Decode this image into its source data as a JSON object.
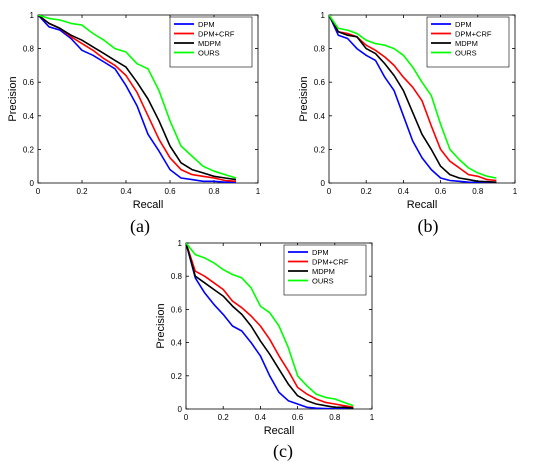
{
  "figure": {
    "panels": [
      {
        "caption": "(a)"
      },
      {
        "caption": "(b)"
      },
      {
        "caption": "(c)"
      }
    ]
  },
  "chart_data": [
    {
      "type": "line",
      "title": "",
      "xlabel": "Recall",
      "ylabel": "Precision",
      "xlim": [
        0,
        1
      ],
      "ylim": [
        0,
        1
      ],
      "xticks": [
        "0",
        "0.2",
        "0.4",
        "0.6",
        "0.8",
        "1"
      ],
      "yticks": [
        "0",
        "0.2",
        "0.4",
        "0.6",
        "0.8",
        "1"
      ],
      "grid": false,
      "legend_position": "top-right",
      "series": [
        {
          "name": "DPM",
          "color": "#0000ff",
          "x": [
            0,
            0.05,
            0.1,
            0.15,
            0.2,
            0.25,
            0.3,
            0.35,
            0.4,
            0.45,
            0.5,
            0.55,
            0.6,
            0.65,
            0.7,
            0.75,
            0.8,
            0.85,
            0.9
          ],
          "y": [
            1,
            0.93,
            0.91,
            0.86,
            0.79,
            0.76,
            0.72,
            0.68,
            0.58,
            0.46,
            0.29,
            0.19,
            0.08,
            0.03,
            0.02,
            0.01,
            0.01,
            0.005,
            0.005
          ]
        },
        {
          "name": "DPM+CRF",
          "color": "#ff0000",
          "x": [
            0,
            0.05,
            0.1,
            0.15,
            0.2,
            0.25,
            0.3,
            0.35,
            0.4,
            0.45,
            0.5,
            0.55,
            0.6,
            0.65,
            0.7,
            0.75,
            0.8,
            0.85,
            0.9
          ],
          "y": [
            1,
            0.95,
            0.92,
            0.87,
            0.83,
            0.79,
            0.74,
            0.7,
            0.64,
            0.54,
            0.4,
            0.26,
            0.15,
            0.08,
            0.05,
            0.04,
            0.03,
            0.015,
            0.01
          ]
        },
        {
          "name": "MDPM",
          "color": "#000000",
          "x": [
            0,
            0.05,
            0.1,
            0.15,
            0.2,
            0.25,
            0.3,
            0.35,
            0.4,
            0.45,
            0.5,
            0.55,
            0.6,
            0.65,
            0.7,
            0.75,
            0.8,
            0.85,
            0.9
          ],
          "y": [
            1,
            0.95,
            0.92,
            0.88,
            0.85,
            0.81,
            0.77,
            0.73,
            0.69,
            0.6,
            0.5,
            0.37,
            0.22,
            0.12,
            0.08,
            0.06,
            0.04,
            0.03,
            0.02
          ]
        },
        {
          "name": "OURS",
          "color": "#00ff00",
          "x": [
            0,
            0.05,
            0.1,
            0.15,
            0.2,
            0.25,
            0.3,
            0.35,
            0.4,
            0.45,
            0.5,
            0.55,
            0.6,
            0.65,
            0.7,
            0.75,
            0.8,
            0.85,
            0.9
          ],
          "y": [
            1,
            0.98,
            0.97,
            0.95,
            0.94,
            0.89,
            0.85,
            0.8,
            0.78,
            0.71,
            0.68,
            0.55,
            0.37,
            0.22,
            0.16,
            0.1,
            0.07,
            0.05,
            0.03
          ]
        }
      ]
    },
    {
      "type": "line",
      "title": "",
      "xlabel": "Recall",
      "ylabel": "Precision",
      "xlim": [
        0,
        1
      ],
      "ylim": [
        0,
        1
      ],
      "xticks": [
        "0",
        "0.2",
        "0.4",
        "0.6",
        "0.8",
        "1"
      ],
      "yticks": [
        "0",
        "0.2",
        "0.4",
        "0.6",
        "0.8",
        "1"
      ],
      "grid": false,
      "legend_position": "top-right",
      "series": [
        {
          "name": "DPM",
          "color": "#0000ff",
          "x": [
            0,
            0.05,
            0.1,
            0.15,
            0.2,
            0.25,
            0.3,
            0.35,
            0.4,
            0.45,
            0.5,
            0.55,
            0.6,
            0.65,
            0.7,
            0.75,
            0.8,
            0.85,
            0.9
          ],
          "y": [
            1,
            0.88,
            0.86,
            0.8,
            0.76,
            0.73,
            0.63,
            0.55,
            0.4,
            0.25,
            0.15,
            0.08,
            0.03,
            0.015,
            0.01,
            0.005,
            0.003,
            0.002,
            0.001
          ]
        },
        {
          "name": "DPM+CRF",
          "color": "#ff0000",
          "x": [
            0,
            0.05,
            0.1,
            0.15,
            0.2,
            0.25,
            0.3,
            0.35,
            0.4,
            0.45,
            0.5,
            0.55,
            0.6,
            0.65,
            0.7,
            0.75,
            0.8,
            0.85,
            0.9
          ],
          "y": [
            1,
            0.9,
            0.89,
            0.87,
            0.82,
            0.79,
            0.75,
            0.7,
            0.63,
            0.57,
            0.49,
            0.34,
            0.2,
            0.13,
            0.09,
            0.05,
            0.04,
            0.02,
            0.015
          ]
        },
        {
          "name": "MDPM",
          "color": "#000000",
          "x": [
            0,
            0.05,
            0.1,
            0.15,
            0.2,
            0.25,
            0.3,
            0.35,
            0.4,
            0.45,
            0.5,
            0.55,
            0.6,
            0.65,
            0.7,
            0.75,
            0.8,
            0.85,
            0.9
          ],
          "y": [
            1,
            0.9,
            0.88,
            0.87,
            0.8,
            0.77,
            0.71,
            0.64,
            0.55,
            0.42,
            0.29,
            0.2,
            0.1,
            0.05,
            0.03,
            0.02,
            0.01,
            0.008,
            0.005
          ]
        },
        {
          "name": "OURS",
          "color": "#00ff00",
          "x": [
            0,
            0.05,
            0.1,
            0.15,
            0.2,
            0.25,
            0.3,
            0.35,
            0.4,
            0.45,
            0.5,
            0.55,
            0.6,
            0.65,
            0.7,
            0.75,
            0.8,
            0.85,
            0.9
          ],
          "y": [
            1,
            0.92,
            0.91,
            0.89,
            0.85,
            0.83,
            0.82,
            0.8,
            0.76,
            0.69,
            0.6,
            0.52,
            0.35,
            0.2,
            0.14,
            0.09,
            0.06,
            0.04,
            0.03
          ]
        }
      ]
    },
    {
      "type": "line",
      "title": "",
      "xlabel": "Recall",
      "ylabel": "Precision",
      "xlim": [
        0,
        1
      ],
      "ylim": [
        0,
        1
      ],
      "xticks": [
        "0",
        "0.2",
        "0.4",
        "0.6",
        "0.8",
        "1"
      ],
      "yticks": [
        "0",
        "0.2",
        "0.4",
        "0.6",
        "0.8",
        "1"
      ],
      "grid": false,
      "legend_position": "top-right",
      "series": [
        {
          "name": "DPM",
          "color": "#0000ff",
          "x": [
            0,
            0.05,
            0.1,
            0.15,
            0.2,
            0.25,
            0.3,
            0.35,
            0.4,
            0.45,
            0.5,
            0.55,
            0.6,
            0.65,
            0.7,
            0.75,
            0.8,
            0.85,
            0.9
          ],
          "y": [
            1,
            0.79,
            0.7,
            0.63,
            0.57,
            0.5,
            0.47,
            0.4,
            0.32,
            0.2,
            0.1,
            0.05,
            0.03,
            0.01,
            0.005,
            0.003,
            0.002,
            0.001,
            0.001
          ]
        },
        {
          "name": "DPM+CRF",
          "color": "#ff0000",
          "x": [
            0,
            0.05,
            0.1,
            0.15,
            0.2,
            0.25,
            0.3,
            0.35,
            0.4,
            0.45,
            0.5,
            0.55,
            0.6,
            0.65,
            0.7,
            0.75,
            0.8,
            0.85,
            0.9
          ],
          "y": [
            1,
            0.83,
            0.8,
            0.76,
            0.72,
            0.65,
            0.61,
            0.56,
            0.5,
            0.42,
            0.32,
            0.23,
            0.13,
            0.09,
            0.06,
            0.04,
            0.03,
            0.02,
            0.01
          ]
        },
        {
          "name": "MDPM",
          "color": "#000000",
          "x": [
            0,
            0.05,
            0.1,
            0.15,
            0.2,
            0.25,
            0.3,
            0.35,
            0.4,
            0.45,
            0.5,
            0.55,
            0.6,
            0.65,
            0.7,
            0.75,
            0.8,
            0.85,
            0.9
          ],
          "y": [
            1,
            0.8,
            0.76,
            0.72,
            0.68,
            0.62,
            0.57,
            0.5,
            0.41,
            0.33,
            0.24,
            0.15,
            0.08,
            0.05,
            0.03,
            0.02,
            0.01,
            0.01,
            0.005
          ]
        },
        {
          "name": "OURS",
          "color": "#00ff00",
          "x": [
            0,
            0.05,
            0.1,
            0.15,
            0.2,
            0.25,
            0.3,
            0.35,
            0.4,
            0.45,
            0.5,
            0.55,
            0.6,
            0.65,
            0.7,
            0.75,
            0.8,
            0.85,
            0.9
          ],
          "y": [
            1,
            0.93,
            0.91,
            0.88,
            0.84,
            0.81,
            0.79,
            0.73,
            0.62,
            0.58,
            0.5,
            0.37,
            0.2,
            0.14,
            0.09,
            0.07,
            0.06,
            0.04,
            0.02
          ]
        }
      ]
    }
  ]
}
